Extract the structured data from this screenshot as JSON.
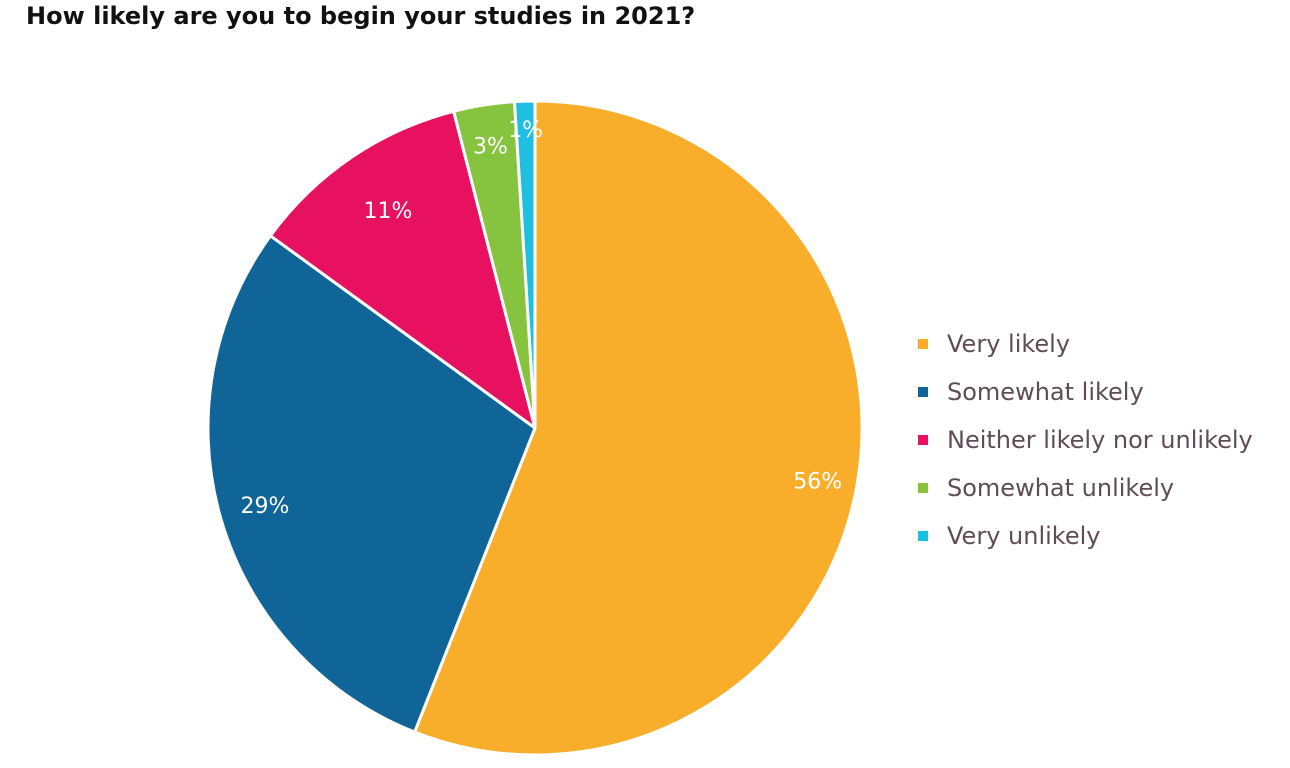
{
  "chart_data": {
    "type": "pie",
    "title": "How likely are you to begin your studies in 2021?",
    "categories": [
      "Very likely",
      "Somewhat likely",
      "Neither likely nor unlikely",
      "Somewhat unlikely",
      "Very unlikely"
    ],
    "values": [
      56,
      29,
      11,
      3,
      1
    ],
    "value_labels": [
      "56%",
      "29%",
      "11%",
      "3%",
      "1%"
    ],
    "colors": [
      "#f9ae2b",
      "#106598",
      "#e8115f",
      "#86c43f",
      "#1ebfe0"
    ],
    "legend_position": "right"
  }
}
